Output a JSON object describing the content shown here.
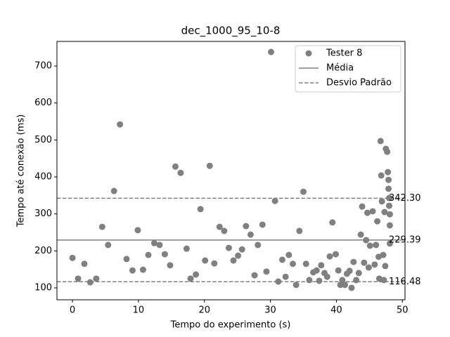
{
  "chart_data": {
    "type": "scatter",
    "title": "dec_1000_95_10-8",
    "x_label": "Tempo do experimento (s)",
    "y_label": "Tempo até conexão (ms)",
    "xlim": [
      -2.35,
      50.4
    ],
    "ylim": [
      67.7,
      766.5
    ],
    "xticks": [
      0,
      10,
      20,
      30,
      40,
      50
    ],
    "yticks": [
      100,
      200,
      300,
      400,
      500,
      600,
      700
    ],
    "legend": "upper right",
    "series": [
      {
        "name": "Tester 8",
        "color": "#808080",
        "x": [
          0,
          0.85,
          1.8,
          2.7,
          3.6,
          4.5,
          5.4,
          6.3,
          7.2,
          8.2,
          9.1,
          9.9,
          10.7,
          11.5,
          12.4,
          13.2,
          14.0,
          14.8,
          15.6,
          16.4,
          17.3,
          17.9,
          18.7,
          19.4,
          20.1,
          20.8,
          21.5,
          22.3,
          23.0,
          23.7,
          24.4,
          25.1,
          25.7,
          26.3,
          27.0,
          27.6,
          28.1,
          28.8,
          29.4,
          30.1,
          30.7,
          31.2,
          31.8,
          32.3,
          32.8,
          33.4,
          33.9,
          34.4,
          35.0,
          35.4,
          35.9,
          36.5,
          37.0,
          37.4,
          37.7,
          38.2,
          38.6,
          39.0,
          39.4,
          39.9,
          40.3,
          40.6,
          40.9,
          41.3,
          41.6,
          42.0,
          42.3,
          42.6,
          43.0,
          43.4,
          43.7,
          43.9,
          44.2,
          44.5,
          44.7,
          44.9,
          45.1,
          45.5,
          45.8,
          46.0,
          46.2,
          46.4,
          46.5,
          46.7,
          46.8,
          46.9,
          47.1,
          47.2,
          47.3,
          47.4,
          47.5,
          47.7,
          47.8,
          47.9,
          47.9,
          48.0,
          48.0,
          48.1,
          48.1,
          48.1
        ],
        "values": [
          181,
          125,
          165,
          115,
          125,
          265,
          216,
          362,
          542,
          178,
          147,
          256,
          149,
          189,
          221,
          216,
          191,
          161,
          428,
          411,
          206,
          125,
          136,
          313,
          174,
          430,
          166,
          265,
          254,
          208,
          174,
          187,
          204,
          267,
          244,
          134,
          216,
          271,
          144,
          738,
          335,
          117,
          176,
          130,
          189,
          165,
          108,
          254,
          360,
          165,
          121,
          142,
          147,
          119,
          161,
          140,
          130,
          185,
          277,
          191,
          147,
          108,
          121,
          108,
          138,
          146,
          100,
          170,
          121,
          140,
          244,
          320,
          168,
          229,
          303,
          155,
          214,
          307,
          163,
          216,
          280,
          184,
          125,
          497,
          404,
          334,
          189,
          121,
          305,
          159,
          476,
          468,
          413,
          392,
          368,
          343,
          322,
          299,
          269,
          220
        ]
      }
    ],
    "mean": {
      "name": "Média",
      "color": "#808080",
      "value": 229.39
    },
    "std": {
      "name": "Desvio Padrão",
      "color": "#808080",
      "lines": [
        {
          "value": 342.3,
          "label": "342.30"
        },
        {
          "value": 116.48,
          "label": "116.48"
        }
      ]
    }
  }
}
